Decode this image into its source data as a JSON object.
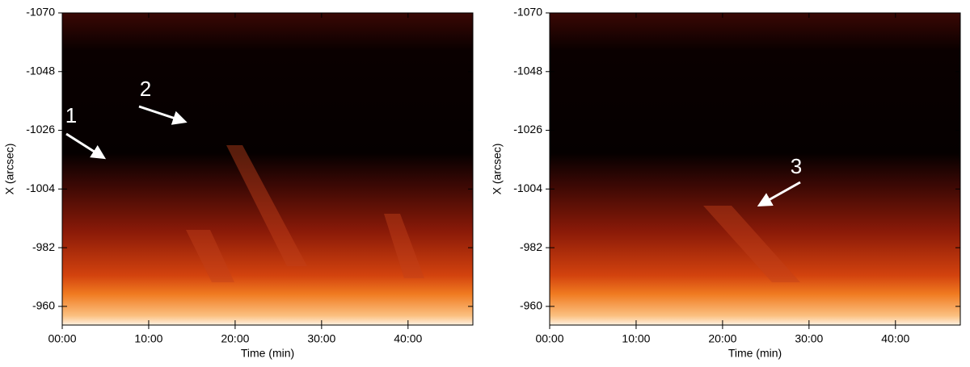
{
  "chart_data": [
    {
      "type": "image",
      "xlabel": "Time (min)",
      "ylabel": "X (arcsec)",
      "xlim": [
        0,
        47.5
      ],
      "ylim": [
        -953,
        -1070
      ],
      "xticks": [
        {
          "value": 0,
          "label": "00:00"
        },
        {
          "value": 10,
          "label": "10:00"
        },
        {
          "value": 20,
          "label": "20:00"
        },
        {
          "value": 30,
          "label": "30:00"
        },
        {
          "value": 40,
          "label": "40:00"
        }
      ],
      "yticks": [
        -1070,
        -1048,
        -1026,
        -1004,
        -982,
        -960
      ],
      "annotations": [
        "1",
        "2"
      ]
    },
    {
      "type": "image",
      "xlabel": "Time (min)",
      "ylabel": "X (arcsec)",
      "xlim": [
        0,
        47.5
      ],
      "ylim": [
        -953,
        -1070
      ],
      "xticks": [
        {
          "value": 0,
          "label": "00:00"
        },
        {
          "value": 10,
          "label": "10:00"
        },
        {
          "value": 20,
          "label": "20:00"
        },
        {
          "value": 30,
          "label": "30:00"
        },
        {
          "value": 40,
          "label": "40:00"
        }
      ],
      "yticks": [
        -1070,
        -1048,
        -1026,
        -1004,
        -982,
        -960
      ],
      "annotations": [
        "3"
      ]
    }
  ]
}
